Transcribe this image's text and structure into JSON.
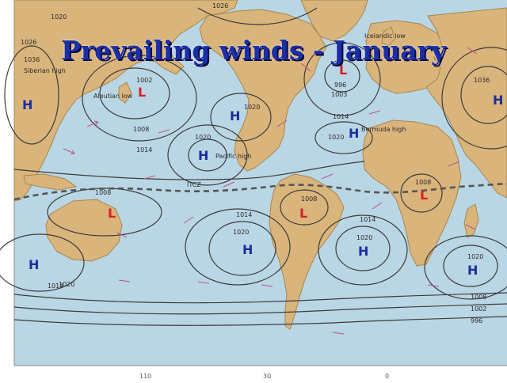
{
  "title": "Prevailing winds - January",
  "colors": {
    "ocean": "#b9d6e4",
    "land": "#d9b47b",
    "land_edge": "#a98650",
    "isobar": "#3c3c3c",
    "high": "#1b2f9c",
    "low": "#d8202a",
    "wind_arrow": "#c0508f",
    "title": "#1a2fa8"
  },
  "pressure_systems": [
    {
      "type": "H",
      "name": "Siberian high",
      "value": "1036"
    },
    {
      "type": "L",
      "name": "Aleutian low",
      "value": "1002"
    },
    {
      "type": "H",
      "name": "Pacific high",
      "value": "1020"
    },
    {
      "type": "H",
      "name": "",
      "value": "1020"
    },
    {
      "type": "L",
      "name": "Icelandic low",
      "value": "996"
    },
    {
      "type": "H",
      "name": "Bermuda high",
      "value": "1020"
    },
    {
      "type": "H",
      "name": "",
      "value": "1036"
    },
    {
      "type": "L",
      "name": "",
      "value": "1008"
    },
    {
      "type": "L",
      "name": "",
      "value": "1008"
    },
    {
      "type": "L",
      "name": "",
      "value": "1008"
    },
    {
      "type": "H",
      "name": "",
      "value": "1020"
    },
    {
      "type": "H",
      "name": "",
      "value": "1020"
    },
    {
      "type": "H",
      "name": "",
      "value": "1020"
    },
    {
      "type": "H",
      "name": "",
      "value": "1014"
    }
  ],
  "itcz_label": "ITCZ",
  "isobar_labels": [
    "1026",
    "1020",
    "1008",
    "1014",
    "1003",
    "1014",
    "1014",
    "1014",
    "1008",
    "1002",
    "996",
    "1020",
    "1026"
  ],
  "axis_labels": [
    "110",
    "30",
    "0"
  ]
}
